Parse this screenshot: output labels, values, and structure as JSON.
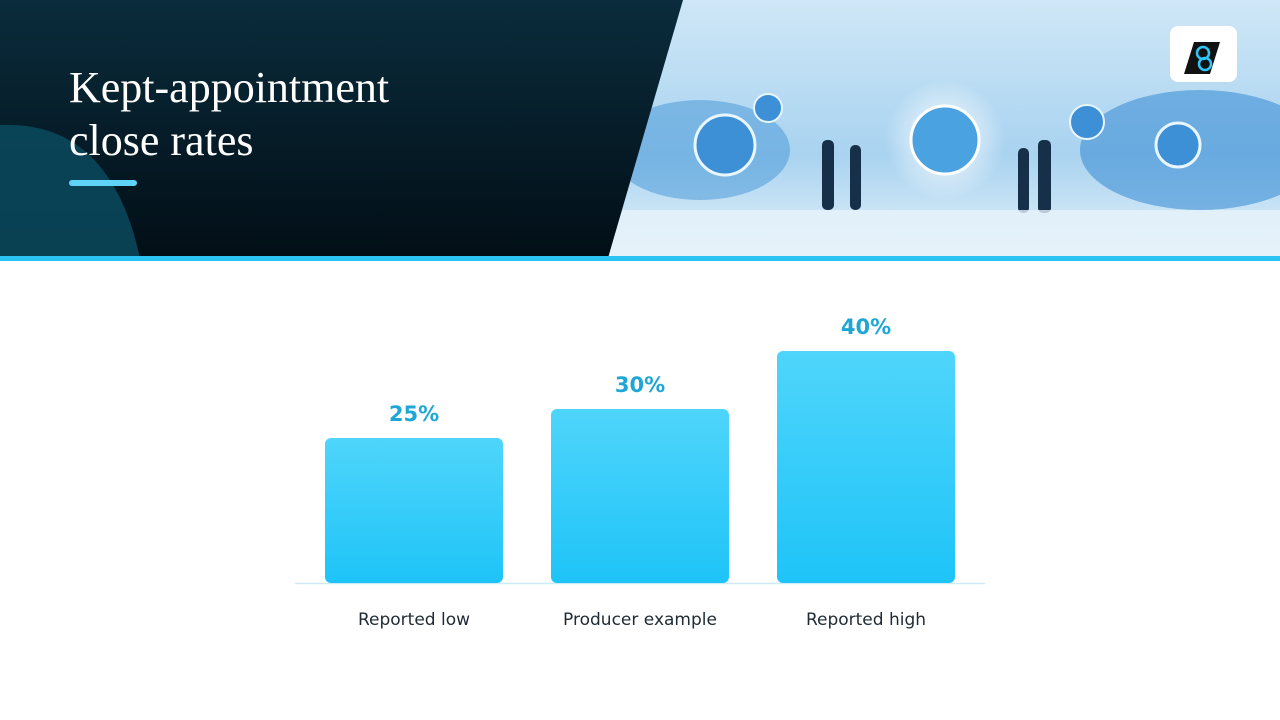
{
  "chart_data": {
    "type": "bar",
    "title": [
      "Kept-appointment",
      "close rates"
    ],
    "categories": [
      "Reported low",
      "Producer example",
      "Reported high"
    ],
    "values": [
      25,
      30,
      40
    ],
    "value_labels": [
      "25%",
      "30%",
      "40%"
    ],
    "color": "#2ec8f8"
  }
}
